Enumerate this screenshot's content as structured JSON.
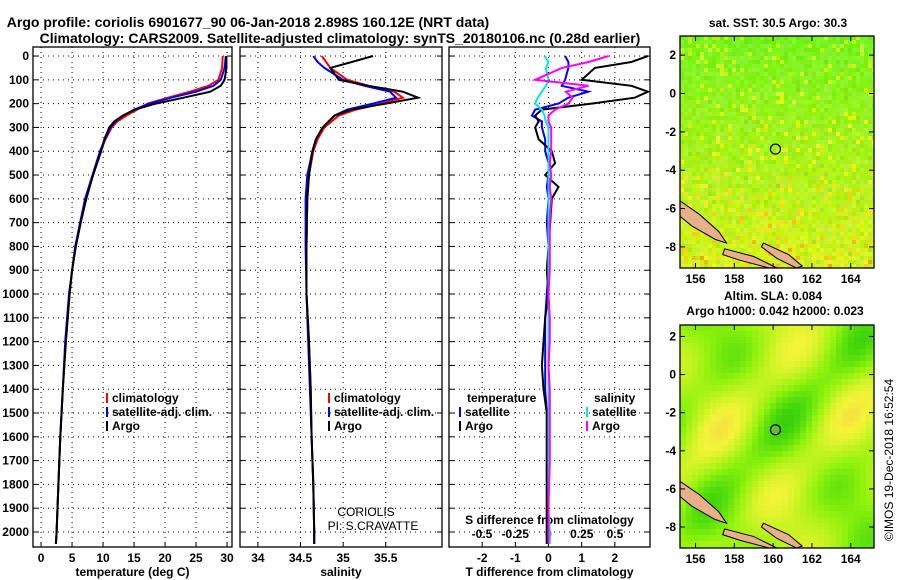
{
  "title_line1": "Argo profile: coriolis 6901677_90 06-Jan-2018 2.898S 160.12E (NRT data)",
  "title_line2": "Climatology: CARS2009. Satellite-adjusted climatology: synTS_20180106.nc (0.28d earlier)",
  "depth_ticks": [
    "0",
    "100",
    "200",
    "300",
    "400",
    "500",
    "600",
    "700",
    "800",
    "900",
    "1000",
    "1100",
    "1200",
    "1300",
    "1400",
    "1500",
    "1600",
    "1700",
    "1800",
    "1900",
    "2000"
  ],
  "credits": {
    "line1": "CORIOLIS",
    "line2": "PI: S.CRAVATTE"
  },
  "timestamp": "©IMOS 19-Dec-2018 16:52:54",
  "colors": {
    "argo": "#000000",
    "climatology": "#ff0000",
    "satellite": "#0000ff",
    "s_satellite": "#00e5ee",
    "s_argo": "#ff00ff"
  },
  "chart_data": [
    {
      "type": "line",
      "xlabel": "temperature (deg C)",
      "ylabel": "depth",
      "xticks": [
        "0",
        "5",
        "10",
        "15",
        "20",
        "25",
        "30"
      ],
      "xlim": [
        -1.3,
        30.8
      ],
      "ylim": [
        2063,
        -38
      ],
      "legend": [
        "climatology",
        "satellite-adj. clim.",
        "Argo"
      ],
      "depth": [
        0,
        50,
        100,
        125,
        150,
        175,
        200,
        225,
        250,
        275,
        300,
        350,
        400,
        500,
        600,
        700,
        800,
        900,
        1000,
        1200,
        1400,
        1600,
        1800,
        2000,
        2050
      ],
      "series": [
        {
          "name": "climatology",
          "values": [
            29.3,
            29.2,
            28.6,
            27,
            24,
            20.5,
            17.2,
            15.5,
            13.8,
            12.3,
            11.4,
            10.4,
            9.6,
            8.4,
            7.2,
            6.4,
            5.6,
            5,
            4.6,
            4,
            3.5,
            3.1,
            2.8,
            2.5,
            2.4
          ]
        },
        {
          "name": "satellite-adj. clim.",
          "values": [
            29.8,
            29.6,
            29,
            27.8,
            25,
            21,
            17.5,
            15,
            13.3,
            12,
            11.2,
            10.3,
            9.5,
            8.3,
            7.1,
            6.3,
            5.5,
            5,
            4.5,
            3.9,
            3.5,
            3.1,
            2.8,
            2.5,
            2.4
          ]
        },
        {
          "name": "Argo",
          "values": [
            29.9,
            29.9,
            29.6,
            29,
            27.3,
            23,
            18.5,
            15.2,
            13.2,
            11.8,
            11,
            10.2,
            9.7,
            8.4,
            7.3,
            6.4,
            5.6,
            5,
            4.6,
            4,
            3.5,
            3.1,
            2.8,
            2.5,
            2.4
          ]
        }
      ]
    },
    {
      "type": "line",
      "xlabel": "salinity",
      "ylabel": "depth",
      "xticks": [
        "34",
        "34.5",
        "35",
        "35.5"
      ],
      "xlim": [
        33.79,
        36.16
      ],
      "ylim": [
        2063,
        -38
      ],
      "legend": [
        "climatology",
        "satellite-adj. clim.",
        "Argo"
      ],
      "depth": [
        0,
        25,
        50,
        100,
        125,
        150,
        175,
        200,
        225,
        250,
        300,
        350,
        400,
        500,
        600,
        800,
        1000,
        1200,
        1400,
        1600,
        1800,
        2000,
        2050
      ],
      "series": [
        {
          "name": "climatology",
          "values": [
            34.75,
            34.8,
            34.85,
            35.05,
            35.3,
            35.6,
            35.7,
            35.45,
            35.15,
            34.95,
            34.78,
            34.7,
            34.65,
            34.6,
            34.58,
            34.57,
            34.57,
            34.6,
            34.62,
            34.63,
            34.65,
            34.66,
            34.66
          ]
        },
        {
          "name": "satellite-adj. clim.",
          "values": [
            34.65,
            34.7,
            34.78,
            35.0,
            35.25,
            35.55,
            35.62,
            35.35,
            35.05,
            34.9,
            34.76,
            34.68,
            34.64,
            34.58,
            34.56,
            34.56,
            34.57,
            34.59,
            34.61,
            34.63,
            34.65,
            34.66,
            34.66
          ]
        },
        {
          "name": "Argo",
          "values": [
            35.35,
            35.1,
            34.85,
            34.95,
            35.3,
            35.7,
            35.88,
            35.5,
            35.1,
            34.9,
            34.76,
            34.68,
            34.64,
            34.6,
            34.58,
            34.57,
            34.57,
            34.6,
            34.62,
            34.63,
            34.65,
            34.66,
            34.66
          ]
        }
      ]
    },
    {
      "type": "line",
      "xlabel": "T difference from climatology",
      "x2label": "S difference from climatology",
      "xticks": [
        "-2",
        "-1",
        "0",
        "1",
        "2"
      ],
      "x2ticks": [
        "-0.5",
        "-0.25",
        "0",
        "0.25",
        "0.5"
      ],
      "xlim": [
        -3.0,
        3.06
      ],
      "ylim": [
        2063,
        -38
      ],
      "legend_titles": [
        "temperature",
        "salinity"
      ],
      "legend_t": [
        "satellite",
        "Argo"
      ],
      "legend_s": [
        "satellite",
        "Argo"
      ],
      "depth": [
        0,
        25,
        50,
        100,
        125,
        150,
        175,
        200,
        225,
        250,
        275,
        300,
        350,
        400,
        450,
        500,
        550,
        600,
        700,
        800,
        900,
        1000,
        1100,
        1200,
        1300,
        1400,
        1500,
        1700,
        1900,
        2000,
        2050
      ],
      "series": [
        {
          "name": "temperature satellite",
          "values": [
            0.5,
            0.6,
            0.6,
            0.5,
            0.4,
            1.2,
            0.6,
            0.3,
            -0.4,
            -0.5,
            -0.2,
            -0.2,
            -0.1,
            -0.1,
            0.0,
            0.0,
            -0.05,
            0.0,
            -0.05,
            0,
            0,
            -0.05,
            -0.1,
            -0.1,
            -0.1,
            -0.1,
            -0.05,
            -0.05,
            -0.05,
            -0.05,
            -0.05
          ]
        },
        {
          "name": "temperature Argo",
          "values": [
            3.0,
            2.5,
            1.4,
            1.0,
            2.5,
            3.0,
            2.6,
            1.3,
            -0.2,
            -0.4,
            -0.3,
            -0.4,
            -0.3,
            0.1,
            0.2,
            -0.1,
            0.3,
            0.1,
            0.05,
            0.0,
            -0.05,
            0.0,
            -0.1,
            -0.15,
            -0.2,
            -0.15,
            -0.05,
            -0.05,
            -0.05,
            -0.05,
            -0.05
          ]
        },
        {
          "name": "salinity satellite",
          "values": [
            -0.03,
            0.0,
            -0.02,
            0.0,
            -0.02,
            -0.05,
            -0.08,
            -0.1,
            -0.05,
            -0.03,
            -0.02,
            0.0,
            0.0,
            0.0,
            0.0,
            0.0,
            0.0,
            0.0,
            0.0,
            0.0,
            0.0,
            0.0,
            0.0,
            0.0,
            0.0,
            0.0,
            0.0,
            0.0,
            0.0,
            0.01,
            0.01
          ]
        },
        {
          "name": "salinity Argo",
          "values": [
            0.45,
            0.3,
            0.1,
            -0.1,
            0.3,
            0.13,
            0.18,
            0.15,
            0.05,
            0.0,
            0.0,
            0.02,
            0.02,
            0.02,
            0.01,
            0.02,
            0.01,
            0.02,
            0.01,
            0.01,
            0.01,
            0.0,
            0.01,
            0.01,
            0.0,
            0.01,
            0.01,
            0.01,
            0.0,
            0.0,
            0.0
          ]
        }
      ]
    },
    {
      "type": "heatmap",
      "title": "sat. SST: 30.5 Argo: 30.3",
      "xticks": [
        "156",
        "158",
        "160",
        "162",
        "164"
      ],
      "yticks": [
        "2",
        "0",
        "-2",
        "-4",
        "-6",
        "-8"
      ],
      "xlim": [
        155.2,
        165.2
      ],
      "ylim": [
        -9.1,
        3.0
      ],
      "profile_location": [
        160.12,
        -2.898
      ]
    },
    {
      "type": "heatmap",
      "title": "Altim. SLA: 0.084",
      "subtitle": "Argo h1000: 0.042 h2000: 0.023",
      "xticks": [
        "156",
        "158",
        "160",
        "162",
        "164"
      ],
      "yticks": [
        "2",
        "0",
        "-2",
        "-4",
        "-6",
        "-8"
      ],
      "xlim": [
        155.2,
        165.2
      ],
      "ylim": [
        -9.1,
        2.6
      ],
      "profile_location": [
        160.12,
        -2.898
      ]
    }
  ]
}
